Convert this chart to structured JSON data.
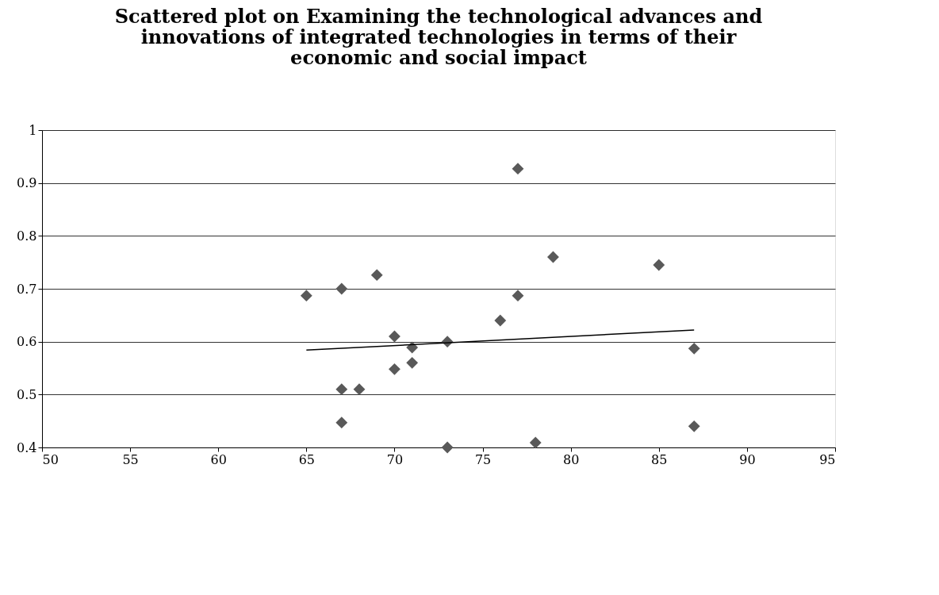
{
  "chart_data": {
    "type": "scatter",
    "title": "Scattered plot on Examining the technological advances and innovations of integrated technologies in terms of their economic and social impact",
    "series": [
      {
        "color": "#595959",
        "marker": "diamond",
        "x": [
          65,
          67,
          69,
          77,
          79,
          85,
          77,
          76,
          70,
          71,
          73,
          71,
          70,
          67,
          68,
          87,
          67,
          87,
          73,
          78
        ],
        "values": [
          0.687,
          0.7,
          0.726,
          0.927,
          0.76,
          0.745,
          0.687,
          0.64,
          0.61,
          0.589,
          0.6,
          0.56,
          0.548,
          0.51,
          0.51,
          0.587,
          0.447,
          0.44,
          0.4,
          0.409
        ]
      },
      {
        "type": "line",
        "color": "#000000",
        "marker": "none",
        "x": [
          65,
          87
        ],
        "values": [
          0.584,
          0.622
        ]
      }
    ],
    "xlim": [
      50,
      95
    ],
    "xticks": [
      50,
      55,
      60,
      65,
      70,
      75,
      80,
      85,
      90,
      95
    ],
    "ylim": [
      0.4,
      1
    ],
    "yticks": [
      0.4,
      0.5,
      0.6,
      0.7,
      0.8,
      0.9,
      1
    ],
    "grid": "y"
  }
}
